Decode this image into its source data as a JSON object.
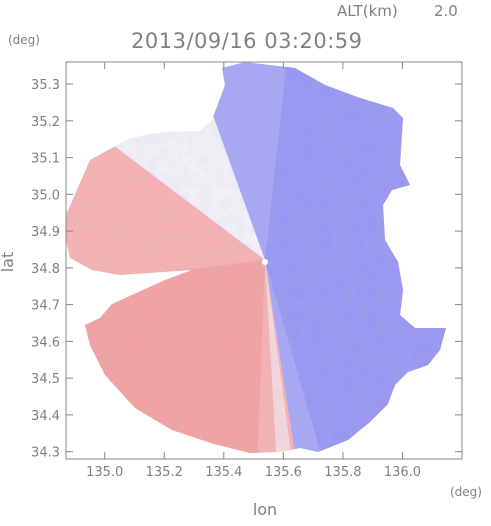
{
  "chart_data": {
    "type": "heatmap",
    "title": "2013/09/16 03:20:59",
    "altitude_label": "ALT(km)",
    "altitude_value": "2.0",
    "xlabel": "lon",
    "ylabel": "lat",
    "x_unit": "(deg)",
    "y_unit": "(deg)",
    "xlim": [
      134.87,
      136.2
    ],
    "ylim": [
      34.28,
      35.36
    ],
    "x_ticks": [
      135.0,
      135.2,
      135.4,
      135.6,
      135.8,
      136.0
    ],
    "x_tick_labels": [
      "135.0",
      "135.2",
      "135.4",
      "135.6",
      "135.8",
      "136.0"
    ],
    "y_ticks": [
      34.3,
      34.4,
      34.5,
      34.6,
      34.7,
      34.8,
      34.9,
      35.0,
      35.1,
      35.2,
      35.3
    ],
    "y_tick_labels": [
      "34.3",
      "34.4",
      "34.5",
      "34.6",
      "34.7",
      "34.8",
      "34.9",
      "35.0",
      "35.1",
      "35.2",
      "35.3"
    ],
    "radar_center": [
      135.52,
      34.82
    ],
    "grid": false,
    "colors": {
      "approaching": "#ff8a8a",
      "receding": "#8a8aff",
      "neutral": "#f7f7fb",
      "axis": "#808080",
      "text": "#808080"
    }
  }
}
